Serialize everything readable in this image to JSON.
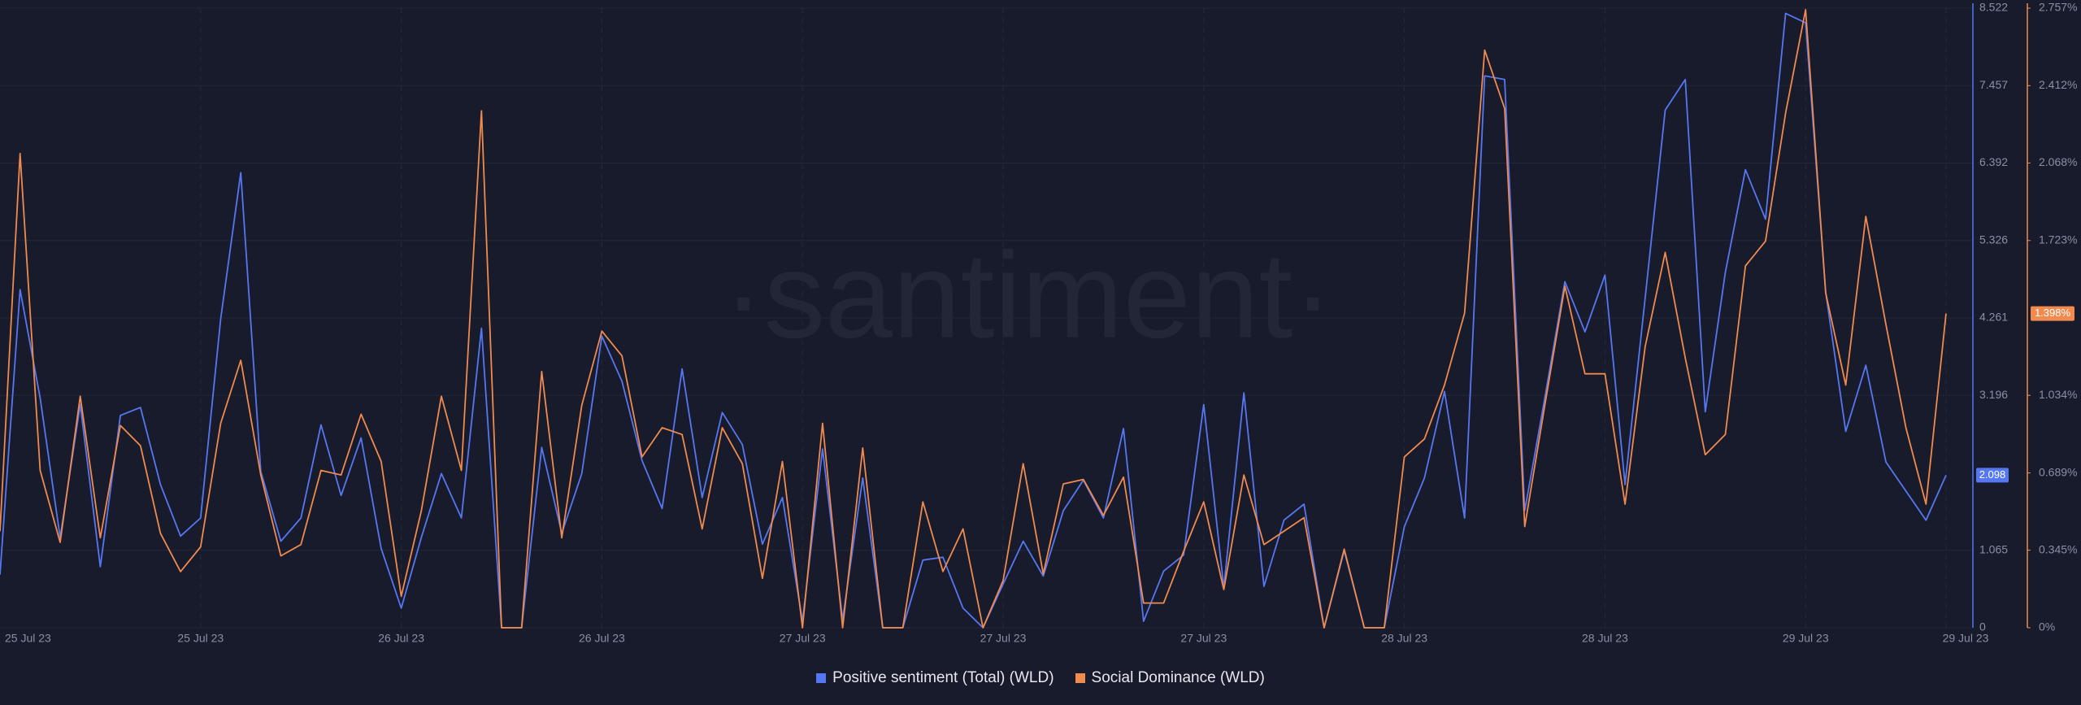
{
  "chart_data": {
    "type": "line",
    "watermark": "·santiment·",
    "categories": [
      "25 Jul 23",
      null,
      null,
      null,
      null,
      null,
      null,
      null,
      null,
      null,
      "25 Jul 23",
      null,
      null,
      null,
      null,
      null,
      null,
      null,
      null,
      null,
      "26 Jul 23",
      null,
      null,
      null,
      null,
      null,
      null,
      null,
      null,
      null,
      "26 Jul 23",
      null,
      null,
      null,
      null,
      null,
      null,
      null,
      null,
      null,
      "27 Jul 23",
      null,
      null,
      null,
      null,
      null,
      null,
      null,
      null,
      null,
      "27 Jul 23",
      null,
      null,
      null,
      null,
      null,
      null,
      null,
      null,
      null,
      "27 Jul 23",
      null,
      null,
      null,
      null,
      null,
      null,
      null,
      null,
      null,
      "28 Jul 23",
      null,
      null,
      null,
      null,
      null,
      null,
      null,
      null,
      null,
      "28 Jul 23",
      null,
      null,
      null,
      null,
      null,
      null,
      null,
      null,
      null,
      "29 Jul 23",
      null,
      null,
      null,
      null,
      null,
      null,
      "29 Jul 23"
    ],
    "series": [
      {
        "name": "Positive sentiment (Total) (WLD)",
        "color": "#5677f2",
        "axis": "y",
        "badge_label": "2.098",
        "values": [
          0.73,
          4.65,
          3.16,
          1.24,
          3.07,
          0.84,
          2.92,
          3.03,
          1.97,
          1.26,
          1.51,
          4.25,
          6.26,
          2.15,
          1.19,
          1.51,
          2.79,
          1.82,
          2.61,
          1.09,
          0.27,
          1.24,
          2.12,
          1.51,
          4.12,
          0,
          0,
          2.48,
          1.3,
          2.12,
          4.01,
          3.39,
          2.3,
          1.64,
          3.56,
          1.79,
          2.96,
          2.52,
          1.15,
          1.79,
          0.09,
          2.46,
          0.11,
          2.06,
          0,
          0,
          0.93,
          0.97,
          0.27,
          0,
          0.6,
          1.19,
          0.71,
          1.61,
          2.03,
          1.51,
          2.74,
          0.09,
          0.78,
          1.0,
          3.07,
          0.55,
          3.23,
          0.57,
          1.48,
          1.7,
          0,
          1.06,
          0,
          0,
          1.39,
          2.06,
          3.25,
          1.51,
          7.59,
          7.54,
          1.61,
          3.16,
          4.76,
          4.07,
          4.85,
          1.97,
          4.53,
          7.12,
          7.54,
          2.97,
          4.89,
          6.3,
          5.62,
          8.45,
          8.32,
          4.62,
          2.7,
          3.61,
          2.28,
          1.88,
          1.48,
          2.098
        ]
      },
      {
        "name": "Social Dominance (WLD)",
        "color": "#f08a4f",
        "axis": "y2",
        "badge_label": "1.398%",
        "values": [
          0.43,
          2.11,
          0.7,
          0.38,
          1.03,
          0.4,
          0.9,
          0.81,
          0.42,
          0.25,
          0.36,
          0.91,
          1.19,
          0.68,
          0.32,
          0.37,
          0.7,
          0.68,
          0.95,
          0.74,
          0.14,
          0.52,
          1.03,
          0.7,
          2.3,
          0,
          0,
          1.14,
          0.4,
          0.99,
          1.32,
          1.21,
          0.76,
          0.89,
          0.86,
          0.44,
          0.89,
          0.73,
          0.22,
          0.74,
          0,
          0.91,
          0,
          0.8,
          0,
          0,
          0.56,
          0.25,
          0.44,
          0,
          0.21,
          0.73,
          0.24,
          0.64,
          0.66,
          0.5,
          0.67,
          0.11,
          0.11,
          0.34,
          0.56,
          0.17,
          0.68,
          0.37,
          0.43,
          0.49,
          0,
          0.35,
          0,
          0,
          0.76,
          0.84,
          1.08,
          1.4,
          2.57,
          2.31,
          0.45,
          0.99,
          1.52,
          1.13,
          1.13,
          0.55,
          1.25,
          1.67,
          1.2,
          0.77,
          0.86,
          1.61,
          1.72,
          2.29,
          2.75,
          1.49,
          1.08,
          1.83,
          1.35,
          0.89,
          0.55,
          1.398
        ]
      }
    ],
    "ylim": [
      0,
      8.522
    ],
    "yticks": [
      0,
      1.065,
      3.196,
      4.261,
      5.326,
      6.392,
      7.457,
      8.522
    ],
    "y2lim": [
      0,
      2.757
    ],
    "y2ticks": [
      {
        "value": 0,
        "label": "0%"
      },
      {
        "value": 0.345,
        "label": "0.345%"
      },
      {
        "value": 0.689,
        "label": "0.689%"
      },
      {
        "value": 1.034,
        "label": "1.034%"
      },
      {
        "value": 1.723,
        "label": "1.723%"
      },
      {
        "value": 2.068,
        "label": "2.068%"
      },
      {
        "value": 2.412,
        "label": "2.412%"
      },
      {
        "value": 2.757,
        "label": "2.757%"
      }
    ],
    "grid": true
  }
}
